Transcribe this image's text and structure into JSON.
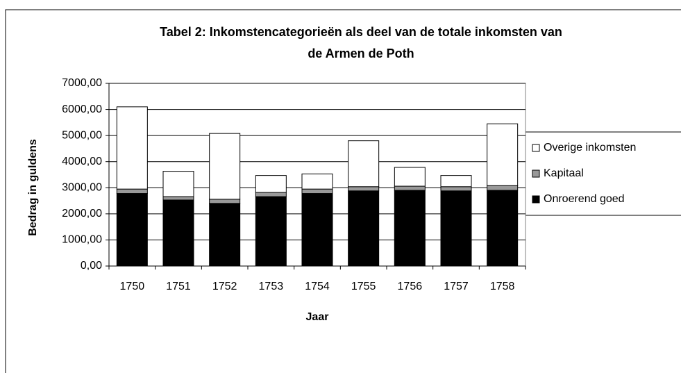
{
  "chart_data": {
    "type": "stacked_bar",
    "title": [
      "Tabel 2: Inkomstencategorieën als deel van de totale inkomsten van",
      "de Armen de Poth"
    ],
    "x_label": "Jaar",
    "y_label": "Bedrag in guldens",
    "categories": [
      "1750",
      "1751",
      "1752",
      "1753",
      "1754",
      "1755",
      "1756",
      "1757",
      "1758"
    ],
    "series": [
      {
        "name": "Onroerend goed",
        "color": "#000000",
        "values": [
          2780,
          2530,
          2400,
          2660,
          2780,
          2880,
          2900,
          2880,
          2900
        ]
      },
      {
        "name": "Kapitaal",
        "color": "#999999",
        "values": [
          170,
          130,
          160,
          160,
          170,
          160,
          160,
          160,
          180
        ]
      },
      {
        "name": "Overige inkomsten",
        "color": "#ffffff",
        "values": [
          3150,
          970,
          2520,
          650,
          580,
          1760,
          720,
          430,
          2370
        ]
      }
    ],
    "ylim": [
      0,
      7000
    ],
    "yticks": [
      {
        "value": 0,
        "label": "0,00"
      },
      {
        "value": 1000,
        "label": "1000,00"
      },
      {
        "value": 2000,
        "label": "2000,00"
      },
      {
        "value": 3000,
        "label": "3000,00"
      },
      {
        "value": 4000,
        "label": "4000,00"
      },
      {
        "value": 5000,
        "label": "5000,00"
      },
      {
        "value": 6000,
        "label": "6000,00"
      },
      {
        "value": 7000,
        "label": "7000,00"
      }
    ],
    "grid": true,
    "legend": "right"
  }
}
